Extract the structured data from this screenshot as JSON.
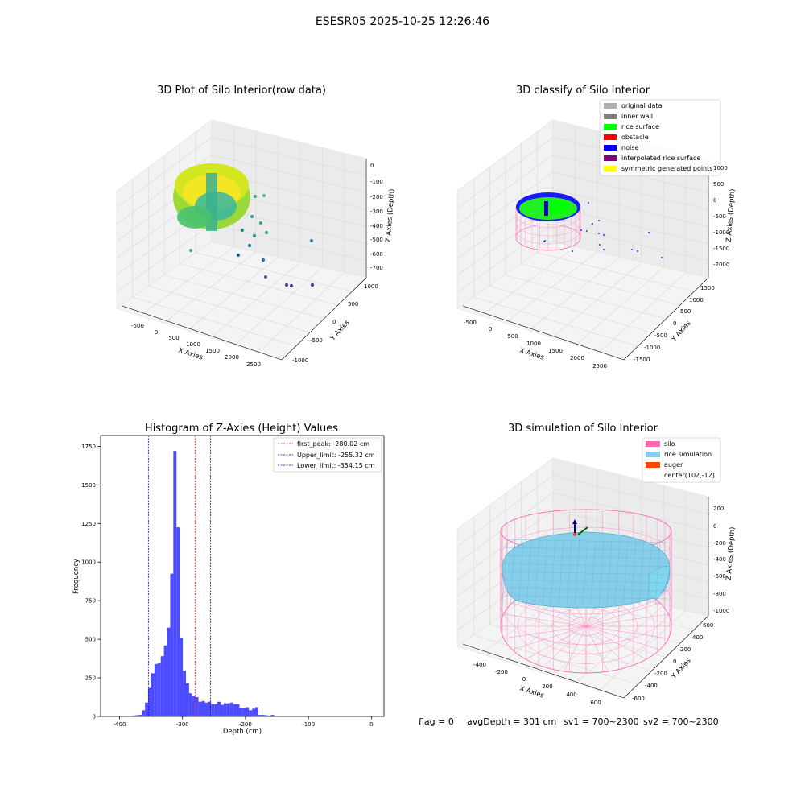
{
  "figure": {
    "suptitle": "ESESR05 2025-10-25 12:26:46",
    "footer": {
      "flag": "flag = 0",
      "avg_depth": "avgDepth = 301 cm",
      "sv1": "sv1 = 700~2300",
      "sv2": "sv2 = 700~2300"
    }
  },
  "panel_raw": {
    "title": "3D Plot of Silo Interior(row data)",
    "xlabel": "X Axies",
    "ylabel": "Y Axies",
    "zlabel": "Z Axies (Depth)",
    "x_ticks": [
      "-500",
      "0",
      "500",
      "1000",
      "1500",
      "2000",
      "2500"
    ],
    "y_ticks": [
      "1000",
      "500",
      "0",
      "-500",
      "-1000"
    ],
    "z_ticks": [
      "0",
      "-100",
      "-200",
      "-300",
      "-400",
      "-500",
      "-600",
      "-700"
    ]
  },
  "panel_classify": {
    "title": "3D classify of Silo Interior",
    "xlabel": "X Axies",
    "ylabel": "Y Axies",
    "zlabel": "Z Axies (Depth)",
    "x_ticks": [
      "-500",
      "0",
      "500",
      "1000",
      "1500",
      "2000",
      "2500"
    ],
    "y_ticks": [
      "1500",
      "1000",
      "500",
      "0",
      "-500",
      "-1000",
      "-1500"
    ],
    "z_ticks": [
      "1000",
      "500",
      "0",
      "-500",
      "-1000",
      "-1500",
      "-2000"
    ],
    "legend": [
      {
        "label": "original data",
        "color": "#b0b0b0"
      },
      {
        "label": "inner wall",
        "color": "#808080"
      },
      {
        "label": "rice surface",
        "color": "#00ff00"
      },
      {
        "label": "obstacle",
        "color": "#ff0000"
      },
      {
        "label": "noise",
        "color": "#0000ff"
      },
      {
        "label": "interpolated rice surface",
        "color": "#800080"
      },
      {
        "label": "symmetric generated points",
        "color": "#ffff00"
      }
    ]
  },
  "panel_hist": {
    "title": "Histogram of Z-Axies (Height) Values",
    "xlabel": "Depth (cm)",
    "ylabel": "Frequency",
    "legend": [
      {
        "label": "first_peak: -280.02 cm",
        "color": "#ff0000"
      },
      {
        "label": "Upper_limit: -255.32 cm",
        "color": "#0000ff"
      },
      {
        "label": "Lower_limit: -354.15 cm",
        "color": "#0000ff"
      }
    ]
  },
  "panel_sim": {
    "title": "3D simulation of Silo Interior",
    "xlabel": "X Axies",
    "ylabel": "Y Axies",
    "zlabel": "Z Axies (Depth)",
    "x_ticks": [
      "-400",
      "-200",
      "0",
      "200",
      "400",
      "600"
    ],
    "y_ticks": [
      "600",
      "400",
      "200",
      "0",
      "-200",
      "-400",
      "-600"
    ],
    "z_ticks": [
      "200",
      "0",
      "-200",
      "-400",
      "-600",
      "-800",
      "-1000"
    ],
    "legend": [
      {
        "label": "silo",
        "color": "#ff69b4"
      },
      {
        "label": "rice simulation",
        "color": "#87ceeb"
      },
      {
        "label": "auger",
        "color": "#ff4500"
      },
      {
        "label": "center(102,-12)",
        "color": ""
      }
    ]
  },
  "chart_data": {
    "type": "bar",
    "title": "Histogram of Z-Axies (Height) Values",
    "xlabel": "Depth (cm)",
    "ylabel": "Frequency",
    "xlim": [
      -430,
      20
    ],
    "ylim": [
      0,
      1820
    ],
    "x_ticks": [
      -400,
      -300,
      -200,
      -100,
      0
    ],
    "y_ticks": [
      0,
      250,
      500,
      750,
      1000,
      1250,
      1500,
      1750
    ],
    "bin_width": 5,
    "bins": [
      {
        "x": -402,
        "value": 2
      },
      {
        "x": -397,
        "value": 2
      },
      {
        "x": -392,
        "value": 3
      },
      {
        "x": -387,
        "value": 3
      },
      {
        "x": -382,
        "value": 4
      },
      {
        "x": -377,
        "value": 6
      },
      {
        "x": -372,
        "value": 8
      },
      {
        "x": -367,
        "value": 10
      },
      {
        "x": -362,
        "value": 40
      },
      {
        "x": -357,
        "value": 90
      },
      {
        "x": -352,
        "value": 185
      },
      {
        "x": -347,
        "value": 280
      },
      {
        "x": -342,
        "value": 340
      },
      {
        "x": -337,
        "value": 345
      },
      {
        "x": -332,
        "value": 390
      },
      {
        "x": -327,
        "value": 460
      },
      {
        "x": -322,
        "value": 575
      },
      {
        "x": -317,
        "value": 925
      },
      {
        "x": -312,
        "value": 1720
      },
      {
        "x": -307,
        "value": 1225
      },
      {
        "x": -302,
        "value": 510
      },
      {
        "x": -297,
        "value": 295
      },
      {
        "x": -292,
        "value": 215
      },
      {
        "x": -287,
        "value": 150
      },
      {
        "x": -282,
        "value": 135
      },
      {
        "x": -277,
        "value": 125
      },
      {
        "x": -272,
        "value": 95
      },
      {
        "x": -267,
        "value": 100
      },
      {
        "x": -262,
        "value": 90
      },
      {
        "x": -257,
        "value": 95
      },
      {
        "x": -252,
        "value": 80
      },
      {
        "x": -247,
        "value": 80
      },
      {
        "x": -242,
        "value": 95
      },
      {
        "x": -237,
        "value": 75
      },
      {
        "x": -232,
        "value": 85
      },
      {
        "x": -227,
        "value": 85
      },
      {
        "x": -222,
        "value": 90
      },
      {
        "x": -217,
        "value": 80
      },
      {
        "x": -212,
        "value": 80
      },
      {
        "x": -207,
        "value": 55
      },
      {
        "x": -202,
        "value": 55
      },
      {
        "x": -197,
        "value": 60
      },
      {
        "x": -192,
        "value": 40
      },
      {
        "x": -187,
        "value": 50
      },
      {
        "x": -182,
        "value": 60
      },
      {
        "x": -177,
        "value": 10
      },
      {
        "x": -172,
        "value": 10
      },
      {
        "x": -167,
        "value": 8
      },
      {
        "x": -162,
        "value": 5
      },
      {
        "x": -157,
        "value": 10
      }
    ],
    "vlines": [
      {
        "x": -280.02,
        "label": "first_peak: -280.02 cm",
        "color": "#ff0000"
      },
      {
        "x": -255.32,
        "label": "Upper_limit: -255.32 cm",
        "color": "#0000ff"
      },
      {
        "x": -354.15,
        "label": "Lower_limit: -354.15 cm",
        "color": "#0000ff"
      }
    ],
    "bar_color": "#4b4bff",
    "legend_position": "top-right"
  }
}
